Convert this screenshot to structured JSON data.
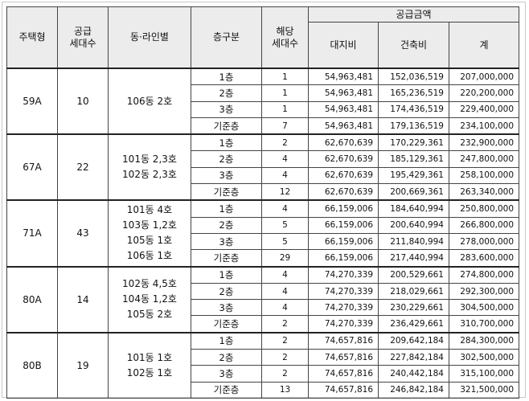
{
  "headers": {
    "housing_type": "주택형",
    "supply_households": "공급\n세대수",
    "building_line": "동·라인별",
    "floor_division": "층구분",
    "applicable_households": "해당\n세대수",
    "supply_amount": "공급금액",
    "land_cost": "대지비",
    "construction_cost": "건축비",
    "total": "계"
  },
  "groups": [
    {
      "type": "59A",
      "households": "10",
      "lines": [
        "106동 2호"
      ],
      "rows": [
        {
          "floor": "1층",
          "count": "1",
          "land": "54,963,481",
          "construction": "152,036,519",
          "total": "207,000,000"
        },
        {
          "floor": "2층",
          "count": "1",
          "land": "54,963,481",
          "construction": "165,236,519",
          "total": "220,200,000"
        },
        {
          "floor": "3층",
          "count": "1",
          "land": "54,963,481",
          "construction": "174,436,519",
          "total": "229,400,000"
        },
        {
          "floor": "기준층",
          "count": "7",
          "land": "54,963,481",
          "construction": "179,136,519",
          "total": "234,100,000"
        }
      ]
    },
    {
      "type": "67A",
      "households": "22",
      "lines": [
        "101동 2,3호",
        "102동 2,3호"
      ],
      "rows": [
        {
          "floor": "1층",
          "count": "2",
          "land": "62,670,639",
          "construction": "170,229,361",
          "total": "232,900,000"
        },
        {
          "floor": "2층",
          "count": "4",
          "land": "62,670,639",
          "construction": "185,129,361",
          "total": "247,800,000"
        },
        {
          "floor": "3층",
          "count": "4",
          "land": "62,670,639",
          "construction": "195,429,361",
          "total": "258,100,000"
        },
        {
          "floor": "기준층",
          "count": "12",
          "land": "62,670,639",
          "construction": "200,669,361",
          "total": "263,340,000"
        }
      ]
    },
    {
      "type": "71A",
      "households": "43",
      "lines": [
        "101동 4호",
        "103동 1,2호",
        "105동 1호",
        "106동 1호"
      ],
      "rows": [
        {
          "floor": "1층",
          "count": "4",
          "land": "66,159,006",
          "construction": "184,640,994",
          "total": "250,800,000"
        },
        {
          "floor": "2층",
          "count": "5",
          "land": "66,159,006",
          "construction": "200,640,994",
          "total": "266,800,000"
        },
        {
          "floor": "3층",
          "count": "5",
          "land": "66,159,006",
          "construction": "211,840,994",
          "total": "278,000,000"
        },
        {
          "floor": "기준층",
          "count": "29",
          "land": "66,159,006",
          "construction": "217,440,994",
          "total": "283,600,000"
        }
      ]
    },
    {
      "type": "80A",
      "households": "14",
      "lines": [
        "102동 4,5호",
        "104동 1,2호",
        "105동 2호"
      ],
      "rows": [
        {
          "floor": "1층",
          "count": "4",
          "land": "74,270,339",
          "construction": "200,529,661",
          "total": "274,800,000"
        },
        {
          "floor": "2층",
          "count": "4",
          "land": "74,270,339",
          "construction": "218,029,661",
          "total": "292,300,000"
        },
        {
          "floor": "3층",
          "count": "4",
          "land": "74,270,339",
          "construction": "230,229,661",
          "total": "304,500,000"
        },
        {
          "floor": "기준층",
          "count": "2",
          "land": "74,270,339",
          "construction": "236,429,661",
          "total": "310,700,000"
        }
      ]
    },
    {
      "type": "80B",
      "households": "19",
      "lines": [
        "101동 1호",
        "102동 1호"
      ],
      "rows": [
        {
          "floor": "1층",
          "count": "2",
          "land": "74,657,816",
          "construction": "209,642,184",
          "total": "284,300,000"
        },
        {
          "floor": "2층",
          "count": "2",
          "land": "74,657,816",
          "construction": "227,842,184",
          "total": "302,500,000"
        },
        {
          "floor": "3층",
          "count": "2",
          "land": "74,657,816",
          "construction": "240,442,184",
          "total": "315,100,000"
        },
        {
          "floor": "기준층",
          "count": "13",
          "land": "74,657,816",
          "construction": "246,842,184",
          "total": "321,500,000"
        }
      ]
    }
  ]
}
